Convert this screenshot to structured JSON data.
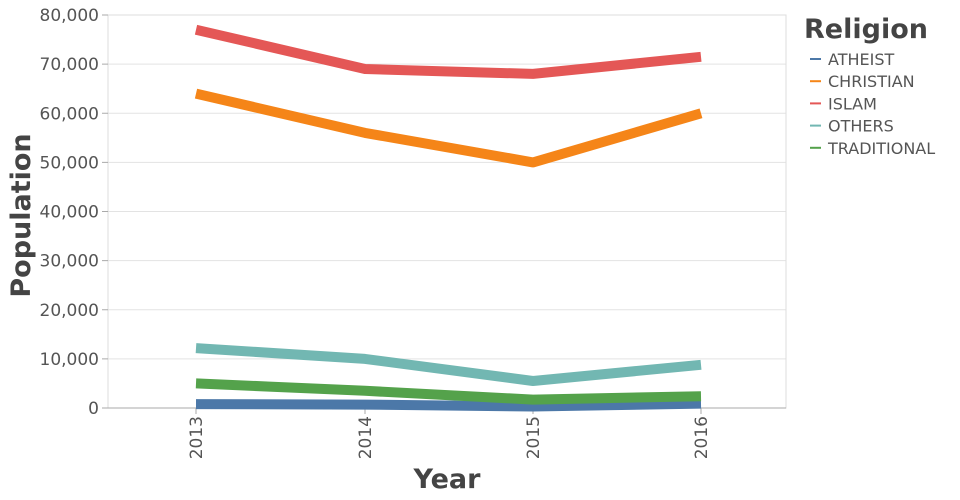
{
  "chart_data": {
    "type": "line",
    "xlabel": "Year",
    "ylabel": "Population",
    "x": [
      "2013",
      "2014",
      "2015",
      "2016"
    ],
    "yticks": [
      "0",
      "10,000",
      "20,000",
      "30,000",
      "40,000",
      "50,000",
      "60,000",
      "70,000",
      "80,000"
    ],
    "ylim": [
      0,
      80000
    ],
    "grid": true,
    "legend": {
      "title": "Religion",
      "placement": "right"
    },
    "series": [
      {
        "name": "ATHEIST",
        "color": "#4c78a8",
        "values": [
          800,
          700,
          300,
          900
        ]
      },
      {
        "name": "CHRISTIAN",
        "color": "#f58518",
        "values": [
          64000,
          56000,
          50000,
          60000
        ]
      },
      {
        "name": "ISLAM",
        "color": "#e45756",
        "values": [
          77000,
          69000,
          68000,
          71500
        ]
      },
      {
        "name": "OTHERS",
        "color": "#72b7b2",
        "values": [
          12200,
          10000,
          5500,
          8800
        ]
      },
      {
        "name": "TRADITIONAL",
        "color": "#54a24b",
        "values": [
          5000,
          3500,
          1700,
          2400
        ]
      }
    ]
  }
}
